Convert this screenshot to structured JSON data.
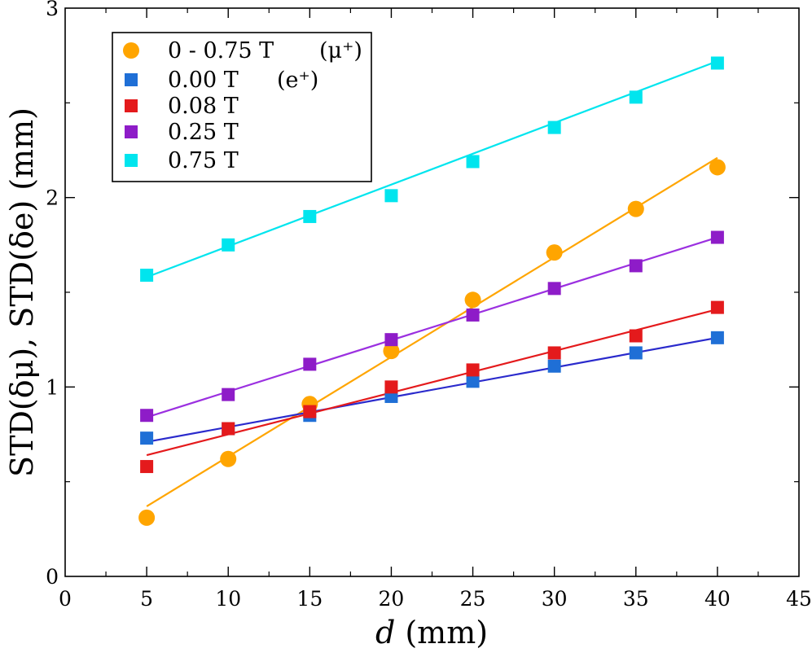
{
  "chart_data": {
    "type": "scatter",
    "xlabel_italic": "d",
    "xlabel_rest": " (mm)",
    "ylabel": "STD(δμ), STD(δe) (mm)",
    "xlim": [
      0,
      45
    ],
    "ylim": [
      0,
      3
    ],
    "xticks": [
      0,
      5,
      10,
      15,
      20,
      25,
      30,
      35,
      40,
      45
    ],
    "xtick_labels": [
      "0",
      "5",
      "10",
      "15",
      "20",
      "25",
      "30",
      "35",
      "40",
      "45"
    ],
    "yticks": [
      0,
      1,
      2,
      3
    ],
    "ytick_labels": [
      "0",
      "1",
      "2",
      "3"
    ],
    "legend_position": "top-left",
    "series": [
      {
        "name": "0 - 0.75 T",
        "particle": "(μ⁺)",
        "marker": "circle",
        "color": "#ffa500",
        "line_color": "#ffa500",
        "x": [
          5,
          10,
          15,
          20,
          25,
          30,
          35,
          40
        ],
        "y": [
          0.31,
          0.62,
          0.91,
          1.19,
          1.46,
          1.71,
          1.94,
          2.16
        ],
        "fit": [
          0.37,
          2.21
        ]
      },
      {
        "name": "0.00 T",
        "particle": "(e⁺)",
        "marker": "square",
        "color": "#1f6fd6",
        "line_color": "#2a2acc",
        "x": [
          5,
          10,
          15,
          20,
          25,
          30,
          35,
          40
        ],
        "y": [
          0.73,
          0.78,
          0.85,
          0.95,
          1.03,
          1.11,
          1.18,
          1.26
        ],
        "fit": [
          0.71,
          1.26
        ]
      },
      {
        "name": "0.08 T",
        "particle": "",
        "marker": "square",
        "color": "#e41a1c",
        "line_color": "#e41a1c",
        "x": [
          5,
          10,
          15,
          20,
          25,
          30,
          35,
          40
        ],
        "y": [
          0.58,
          0.78,
          0.87,
          1.0,
          1.09,
          1.18,
          1.27,
          1.42
        ],
        "fit": [
          0.64,
          1.41
        ]
      },
      {
        "name": "0.25 T",
        "particle": "",
        "marker": "square",
        "color": "#8e1cc8",
        "line_color": "#9b30e0",
        "x": [
          5,
          10,
          15,
          20,
          25,
          30,
          35,
          40
        ],
        "y": [
          0.85,
          0.96,
          1.12,
          1.25,
          1.38,
          1.52,
          1.64,
          1.79
        ],
        "fit": [
          0.84,
          1.79
        ]
      },
      {
        "name": "0.75 T",
        "particle": "",
        "marker": "square",
        "color": "#00e5ee",
        "line_color": "#00e5ee",
        "x": [
          5,
          10,
          15,
          20,
          25,
          30,
          35,
          40
        ],
        "y": [
          1.59,
          1.75,
          1.9,
          2.01,
          2.19,
          2.37,
          2.53,
          2.71
        ],
        "fit": [
          1.58,
          2.72
        ]
      }
    ]
  }
}
